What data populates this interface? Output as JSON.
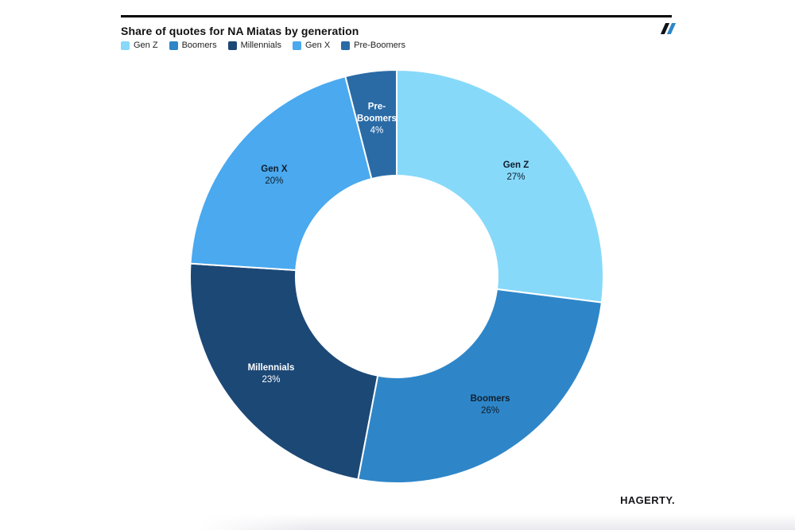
{
  "header": {
    "title": "Share of quotes for NA Miatas by generation"
  },
  "footer": {
    "logo_text": "HAGERTY."
  },
  "chart_data": {
    "type": "pie",
    "donut": true,
    "title": "Share of quotes for NA Miatas by generation",
    "legend_position": "top",
    "start_angle_deg": 0,
    "direction": "clockwise",
    "inner_radius_ratio": 0.49,
    "categories": [
      "Gen Z",
      "Boomers",
      "Millennials",
      "Gen X",
      "Pre-Boomers"
    ],
    "values": [
      27,
      26,
      23,
      20,
      4
    ],
    "segments": [
      {
        "label": "Gen Z",
        "value": 27,
        "value_label": "27%",
        "color": "#87d9f9",
        "text_color": "#0f1e2d",
        "label_lines": [
          "Gen Z"
        ]
      },
      {
        "label": "Boomers",
        "value": 26,
        "value_label": "26%",
        "color": "#2e86c8",
        "text_color": "#0f1e2d",
        "label_lines": [
          "Boomers"
        ]
      },
      {
        "label": "Millennials",
        "value": 23,
        "value_label": "23%",
        "color": "#1c4876",
        "text_color": "#ffffff",
        "label_lines": [
          "Millennials"
        ]
      },
      {
        "label": "Gen X",
        "value": 20,
        "value_label": "20%",
        "color": "#4aa9ef",
        "text_color": "#0f1e2d",
        "label_lines": [
          "Gen X"
        ]
      },
      {
        "label": "Pre-Boomers",
        "value": 4,
        "value_label": "4%",
        "color": "#2a6ba6",
        "text_color": "#ffffff",
        "label_lines": [
          "Pre-",
          "Boomers"
        ]
      }
    ],
    "separator_color": "#ffffff",
    "hole_color": "#ffffff"
  }
}
